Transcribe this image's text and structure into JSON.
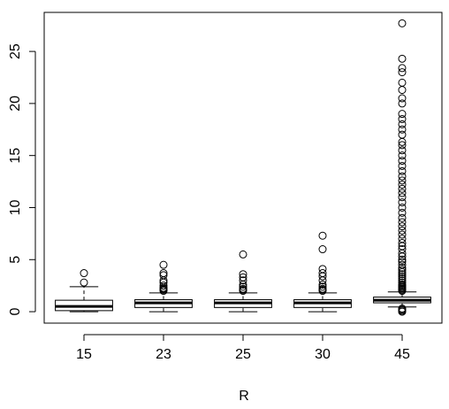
{
  "chart_data": {
    "type": "box",
    "x_label": "R",
    "categories": [
      "15",
      "23",
      "25",
      "30",
      "45"
    ],
    "stats": {
      "min": [
        0,
        0,
        0,
        0,
        0.45
      ],
      "q1": [
        0.1,
        0.4,
        0.4,
        0.4,
        0.85
      ],
      "median": [
        0.5,
        0.85,
        0.85,
        0.85,
        1.1
      ],
      "q3": [
        1.1,
        1.15,
        1.15,
        1.15,
        1.4
      ],
      "max": [
        2.4,
        1.8,
        1.8,
        1.8,
        1.9
      ]
    },
    "outliers": [
      [
        2.8,
        3.7
      ],
      [
        2.0,
        2.1,
        2.2,
        2.3,
        2.5,
        2.8,
        3.0,
        3.5,
        3.7,
        4.5
      ],
      [
        2.0,
        2.1,
        2.2,
        2.4,
        2.6,
        3.0,
        3.3,
        3.6,
        5.5
      ],
      [
        2.0,
        2.1,
        2.2,
        2.4,
        2.6,
        3.0,
        3.4,
        3.7,
        4.1,
        6.0,
        7.3
      ],
      [
        0.0,
        0.1,
        0.2,
        0.3,
        2.0,
        2.1,
        2.2,
        2.3,
        2.4,
        2.5,
        2.6,
        2.8,
        3.0,
        3.2,
        3.4,
        3.6,
        3.8,
        4.0,
        4.2,
        4.5,
        4.8,
        5.0,
        5.3,
        5.6,
        6.0,
        6.3,
        6.6,
        7.0,
        7.4,
        7.8,
        8.2,
        8.6,
        9.0,
        9.5,
        10.0,
        10.5,
        11.0,
        11.4,
        11.8,
        12.2,
        12.6,
        13.0,
        13.5,
        14.0,
        14.5,
        15.0,
        15.5,
        16.0,
        16.3,
        17.0,
        17.5,
        18.0,
        18.5,
        19.0,
        20.0,
        20.5,
        21.3,
        22.0,
        23.0,
        23.4,
        24.3,
        27.7
      ]
    ],
    "ylim": [
      -1.1,
      28.75
    ],
    "yticks": [
      0,
      5,
      10,
      15,
      20,
      25
    ],
    "box_color": "#000",
    "outlier_size": 4
  }
}
